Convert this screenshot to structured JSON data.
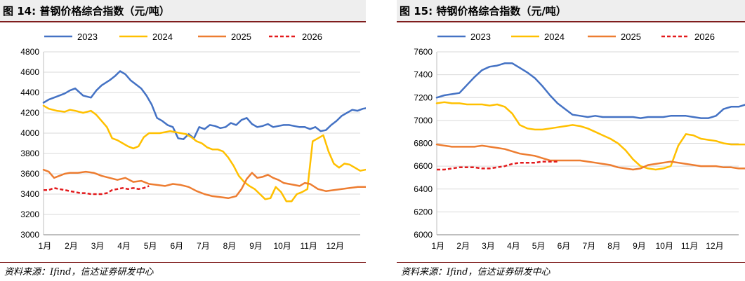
{
  "source": "资料来源：Ifind，信达证券研发中心",
  "charts": [
    {
      "figure_title": "图 14:  普钢价格综合指数（元/吨）",
      "chart_data": {
        "type": "line",
        "legend": [
          "2023",
          "2024",
          "2025",
          "2026"
        ],
        "legend_position": "top",
        "x_ticks": [
          "1月",
          "2月",
          "3月",
          "4月",
          "5月",
          "6月",
          "7月",
          "8月",
          "9月",
          "10月",
          "11月",
          "12月"
        ],
        "ylim": [
          3000,
          4800
        ],
        "y_ticks": [
          3000,
          3200,
          3400,
          3600,
          3800,
          4000,
          4200,
          4400,
          4600,
          4800
        ],
        "grid": "horizontal",
        "series": [
          {
            "name": "2023",
            "color": "#4472c4",
            "dash": false,
            "x": [
              0,
              0.2,
              0.5,
              0.8,
              1.0,
              1.2,
              1.5,
              1.8,
              2.0,
              2.2,
              2.5,
              2.7,
              2.9,
              3.1,
              3.3,
              3.5,
              3.7,
              3.9,
              4.1,
              4.3,
              4.5,
              4.7,
              4.9,
              5.1,
              5.3,
              5.5,
              5.7,
              5.9,
              6.1,
              6.3,
              6.5,
              6.7,
              6.9,
              7.1,
              7.3,
              7.5,
              7.7,
              7.9,
              8.1,
              8.3,
              8.5,
              8.7,
              8.9,
              9.1,
              9.3,
              9.5,
              9.7,
              9.9,
              10.1,
              10.3,
              10.5,
              10.7,
              10.9,
              11.1,
              11.3,
              11.5,
              11.7,
              11.9,
              12.1,
              12.3,
              12.5,
              12.7,
              12.9,
              13.0
            ],
            "y": [
              4300,
              4330,
              4360,
              4390,
              4420,
              4440,
              4370,
              4350,
              4420,
              4470,
              4520,
              4560,
              4610,
              4580,
              4520,
              4480,
              4440,
              4370,
              4280,
              4150,
              4120,
              4080,
              4060,
              3950,
              3940,
              3990,
              3950,
              4060,
              4040,
              4080,
              4070,
              4050,
              4060,
              4100,
              4080,
              4130,
              4150,
              4090,
              4060,
              4070,
              4090,
              4060,
              4070,
              4080,
              4080,
              4070,
              4060,
              4060,
              4040,
              4060,
              4020,
              4030,
              4080,
              4120,
              4170,
              4200,
              4230,
              4220,
              4240,
              4250,
              4260,
              4250,
              4250,
              4250
            ]
          },
          {
            "name": "2024",
            "color": "#ffc000",
            "dash": false,
            "x": [
              0,
              0.2,
              0.5,
              0.8,
              1.0,
              1.2,
              1.5,
              1.8,
              2.0,
              2.2,
              2.4,
              2.6,
              2.8,
              3.0,
              3.2,
              3.4,
              3.6,
              3.8,
              4.0,
              4.2,
              4.4,
              4.6,
              4.8,
              5.0,
              5.2,
              5.4,
              5.6,
              5.8,
              6.0,
              6.2,
              6.4,
              6.6,
              6.8,
              7.0,
              7.2,
              7.4,
              7.6,
              7.8,
              8.0,
              8.2,
              8.4,
              8.6,
              8.8,
              9.0,
              9.2,
              9.4,
              9.6,
              9.8,
              10.0,
              10.2,
              10.4,
              10.6,
              10.8,
              11.0,
              11.2,
              11.4,
              11.6,
              11.8,
              12.0,
              12.2,
              12.4,
              12.6,
              12.8,
              13.0
            ],
            "y": [
              4270,
              4240,
              4220,
              4210,
              4230,
              4220,
              4200,
              4220,
              4180,
              4120,
              4060,
              3950,
              3930,
              3900,
              3870,
              3850,
              3870,
              3960,
              4000,
              4000,
              4000,
              4010,
              4020,
              4010,
              4000,
              3990,
              3960,
              3920,
              3900,
              3860,
              3840,
              3840,
              3820,
              3760,
              3680,
              3580,
              3520,
              3480,
              3450,
              3400,
              3350,
              3360,
              3470,
              3420,
              3330,
              3330,
              3400,
              3420,
              3450,
              3920,
              3950,
              3980,
              3820,
              3700,
              3660,
              3700,
              3690,
              3660,
              3630,
              3640,
              3650,
              3660,
              3650,
              3640
            ]
          },
          {
            "name": "2025",
            "color": "#ed7d31",
            "dash": false,
            "x": [
              0,
              0.2,
              0.4,
              0.6,
              0.8,
              1.0,
              1.3,
              1.6,
              1.9,
              2.2,
              2.5,
              2.8,
              3.1,
              3.4,
              3.7,
              4.0,
              4.3,
              4.6,
              4.9,
              5.2,
              5.5,
              5.8,
              6.1,
              6.4,
              6.7,
              7.0,
              7.3,
              7.5,
              7.7,
              7.9,
              8.1,
              8.3,
              8.5,
              8.7,
              8.9,
              9.1,
              9.3,
              9.5,
              9.7,
              9.9,
              10.1,
              10.4,
              10.7,
              11.0,
              11.3,
              11.6,
              11.9,
              12.2,
              12.5,
              12.8,
              13.0
            ],
            "y": [
              3640,
              3620,
              3560,
              3580,
              3600,
              3610,
              3610,
              3620,
              3610,
              3580,
              3560,
              3540,
              3560,
              3520,
              3530,
              3500,
              3490,
              3480,
              3500,
              3490,
              3470,
              3430,
              3400,
              3380,
              3370,
              3360,
              3380,
              3450,
              3550,
              3610,
              3560,
              3570,
              3590,
              3560,
              3540,
              3510,
              3500,
              3490,
              3480,
              3510,
              3500,
              3450,
              3430,
              3440,
              3450,
              3460,
              3470,
              3470,
              3460,
              3440,
              3440
            ]
          },
          {
            "name": "2026",
            "color": "#e31a1c",
            "dash": true,
            "x": [
              0,
              0.2,
              0.4,
              0.6,
              0.8,
              1.0,
              1.2,
              1.4,
              1.6,
              1.8,
              2.0,
              2.2,
              2.4,
              2.6,
              2.8,
              3.0,
              3.2,
              3.4,
              3.6,
              3.8,
              4.0
            ],
            "y": [
              3440,
              3440,
              3460,
              3450,
              3440,
              3430,
              3420,
              3410,
              3410,
              3400,
              3400,
              3400,
              3410,
              3440,
              3450,
              3460,
              3450,
              3460,
              3450,
              3460,
              3480
            ]
          }
        ]
      }
    },
    {
      "figure_title": "图 15:  特钢价格综合指数（元/吨）",
      "chart_data": {
        "type": "line",
        "legend": [
          "2023",
          "2024",
          "2025",
          "2026"
        ],
        "legend_position": "top",
        "x_ticks": [
          "1月",
          "2月",
          "3月",
          "4月",
          "5月",
          "6月",
          "7月",
          "8月",
          "9月",
          "10月",
          "11月",
          "12月"
        ],
        "ylim": [
          6000,
          7600
        ],
        "y_ticks": [
          6000,
          6200,
          6400,
          6600,
          6800,
          7000,
          7200,
          7400,
          7600
        ],
        "grid": "horizontal",
        "series": [
          {
            "name": "2023",
            "color": "#4472c4",
            "dash": false,
            "x": [
              0,
              0.3,
              0.6,
              0.9,
              1.2,
              1.5,
              1.8,
              2.1,
              2.4,
              2.7,
              3.0,
              3.3,
              3.6,
              3.9,
              4.2,
              4.5,
              4.8,
              5.1,
              5.4,
              5.7,
              6.0,
              6.3,
              6.6,
              6.9,
              7.2,
              7.5,
              7.8,
              8.1,
              8.4,
              8.7,
              9.0,
              9.3,
              9.6,
              9.9,
              10.2,
              10.5,
              10.8,
              11.1,
              11.4,
              11.7,
              12.0,
              12.3,
              12.6,
              12.9,
              13.0
            ],
            "y": [
              7200,
              7220,
              7230,
              7240,
              7310,
              7380,
              7440,
              7470,
              7480,
              7500,
              7500,
              7460,
              7420,
              7370,
              7300,
              7220,
              7150,
              7100,
              7050,
              7040,
              7030,
              7040,
              7030,
              7030,
              7030,
              7030,
              7030,
              7020,
              7030,
              7030,
              7030,
              7040,
              7040,
              7040,
              7030,
              7020,
              7020,
              7040,
              7100,
              7120,
              7120,
              7140,
              7150,
              7150,
              7150
            ]
          },
          {
            "name": "2024",
            "color": "#ffc000",
            "dash": false,
            "x": [
              0,
              0.3,
              0.6,
              0.9,
              1.2,
              1.5,
              1.8,
              2.1,
              2.4,
              2.7,
              3.0,
              3.3,
              3.6,
              3.9,
              4.2,
              4.5,
              4.8,
              5.1,
              5.4,
              5.7,
              6.0,
              6.3,
              6.6,
              6.9,
              7.2,
              7.5,
              7.8,
              8.1,
              8.4,
              8.7,
              9.0,
              9.3,
              9.6,
              9.9,
              10.2,
              10.5,
              10.8,
              11.1,
              11.4,
              11.7,
              12.0,
              12.3,
              12.6,
              12.9,
              13.0
            ],
            "y": [
              7150,
              7160,
              7150,
              7150,
              7140,
              7140,
              7140,
              7130,
              7140,
              7120,
              7060,
              6960,
              6930,
              6920,
              6920,
              6930,
              6940,
              6950,
              6960,
              6950,
              6930,
              6900,
              6870,
              6840,
              6800,
              6740,
              6660,
              6600,
              6580,
              6570,
              6580,
              6600,
              6780,
              6880,
              6870,
              6840,
              6830,
              6820,
              6800,
              6790,
              6790,
              6790,
              6790,
              6790,
              6790
            ]
          },
          {
            "name": "2025",
            "color": "#ed7d31",
            "dash": false,
            "x": [
              0,
              0.3,
              0.6,
              0.9,
              1.2,
              1.5,
              1.8,
              2.1,
              2.4,
              2.7,
              3.0,
              3.3,
              3.6,
              3.9,
              4.2,
              4.5,
              4.8,
              5.1,
              5.4,
              5.7,
              6.0,
              6.3,
              6.6,
              6.9,
              7.2,
              7.5,
              7.8,
              8.1,
              8.4,
              8.7,
              9.0,
              9.3,
              9.6,
              9.9,
              10.2,
              10.5,
              10.8,
              11.1,
              11.4,
              11.7,
              12.0,
              12.3,
              12.6,
              12.9,
              13.0
            ],
            "y": [
              6790,
              6780,
              6770,
              6770,
              6770,
              6770,
              6780,
              6770,
              6760,
              6750,
              6730,
              6710,
              6700,
              6690,
              6670,
              6650,
              6650,
              6650,
              6650,
              6650,
              6640,
              6630,
              6620,
              6610,
              6590,
              6580,
              6570,
              6580,
              6610,
              6620,
              6630,
              6640,
              6630,
              6620,
              6610,
              6600,
              6600,
              6600,
              6590,
              6590,
              6580,
              6580,
              6570,
              6570,
              6570
            ]
          },
          {
            "name": "2026",
            "color": "#e31a1c",
            "dash": true,
            "x": [
              0,
              0.3,
              0.6,
              0.9,
              1.2,
              1.5,
              1.8,
              2.1,
              2.4,
              2.7,
              3.0,
              3.3,
              3.6,
              3.9,
              4.2,
              4.5,
              4.8
            ],
            "y": [
              6570,
              6570,
              6580,
              6590,
              6590,
              6590,
              6580,
              6580,
              6590,
              6600,
              6620,
              6630,
              6630,
              6630,
              6640,
              6640,
              6640
            ]
          }
        ]
      }
    }
  ]
}
